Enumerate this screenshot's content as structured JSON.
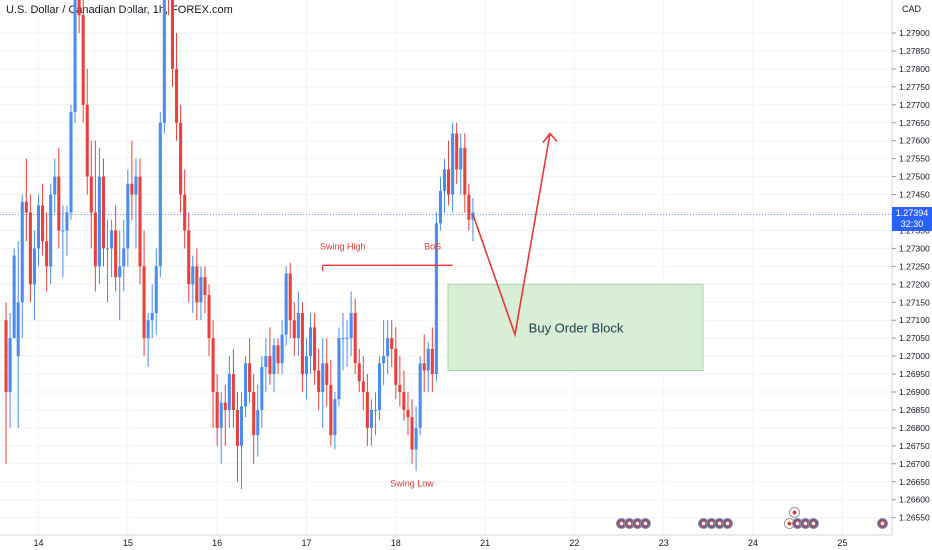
{
  "chart_title": "U.S. Dollar / Canadian Dollar, 1h, FOREX.com",
  "currency_label": "CAD",
  "current_price": {
    "value": "1.27394",
    "countdown": "32:30"
  },
  "colors": {
    "up": "#4a8cf0",
    "down": "#e8403a",
    "annotation": "#e53935",
    "block_fill": "#d8efd5",
    "block_border": "#a5d6a7",
    "tag": "#2962ff"
  },
  "chart_data": {
    "type": "candlestick",
    "title": "U.S. Dollar / Canadian Dollar, 1h, FOREX.com",
    "ylabel": "CAD",
    "ylim": [
      1.2623,
      1.28
    ],
    "y_ticks": [
      "1.27900",
      "1.27850",
      "1.27800",
      "1.27750",
      "1.27700",
      "1.27650",
      "1.27600",
      "1.27550",
      "1.27500",
      "1.27450",
      "1.27400",
      "1.27350",
      "1.27300",
      "1.27250",
      "1.27200",
      "1.27150",
      "1.27100",
      "1.27050",
      "1.27000",
      "1.26950",
      "1.26900",
      "1.26850",
      "1.26800",
      "1.26750",
      "1.26700",
      "1.26650",
      "1.26600",
      "1.26550"
    ],
    "x_ticks": [
      {
        "label": "14",
        "bar": 8
      },
      {
        "label": "15",
        "bar": 30
      },
      {
        "label": "16",
        "bar": 52
      },
      {
        "label": "17",
        "bar": 74
      },
      {
        "label": "18",
        "bar": 96
      },
      {
        "label": "21",
        "bar": 118
      },
      {
        "label": "22",
        "bar": 140
      },
      {
        "label": "23",
        "bar": 162
      },
      {
        "label": "24",
        "bar": 184
      },
      {
        "label": "25",
        "bar": 206
      }
    ],
    "candles": [
      [
        1.271,
        1.2715,
        1.267,
        1.269
      ],
      [
        1.269,
        1.2712,
        1.268,
        1.2705
      ],
      [
        1.2705,
        1.273,
        1.2705,
        1.2728
      ],
      [
        1.27,
        1.2732,
        1.268,
        1.2715
      ],
      [
        1.2715,
        1.2745,
        1.2705,
        1.2743
      ],
      [
        1.2743,
        1.2755,
        1.2732,
        1.274
      ],
      [
        1.274,
        1.2745,
        1.2715,
        1.272
      ],
      [
        1.272,
        1.2735,
        1.271,
        1.273
      ],
      [
        1.273,
        1.2745,
        1.2725,
        1.2742
      ],
      [
        1.2742,
        1.2748,
        1.2728,
        1.2732
      ],
      [
        1.2732,
        1.274,
        1.2718,
        1.2725
      ],
      [
        1.2725,
        1.2748,
        1.272,
        1.2745
      ],
      [
        1.2745,
        1.2755,
        1.274,
        1.275
      ],
      [
        1.275,
        1.2758,
        1.273,
        1.2735
      ],
      [
        1.2735,
        1.2742,
        1.2722,
        1.2735
      ],
      [
        1.2735,
        1.2742,
        1.2728,
        1.274
      ],
      [
        1.274,
        1.277,
        1.2738,
        1.2768
      ],
      [
        1.2768,
        1.2825,
        1.2765,
        1.282
      ],
      [
        1.282,
        1.2835,
        1.279,
        1.2795
      ],
      [
        1.2795,
        1.28,
        1.2765,
        1.277
      ],
      [
        1.277,
        1.278,
        1.2745,
        1.275
      ],
      [
        1.275,
        1.276,
        1.273,
        1.274
      ],
      [
        1.274,
        1.276,
        1.2718,
        1.2725
      ],
      [
        1.2725,
        1.2758,
        1.272,
        1.275
      ],
      [
        1.275,
        1.2755,
        1.2725,
        1.273
      ],
      [
        1.273,
        1.2738,
        1.2715,
        1.273
      ],
      [
        1.273,
        1.2738,
        1.2722,
        1.2735
      ],
      [
        1.2735,
        1.2742,
        1.2718,
        1.2722
      ],
      [
        1.2722,
        1.2735,
        1.271,
        1.2725
      ],
      [
        1.2725,
        1.2738,
        1.2718,
        1.273
      ],
      [
        1.273,
        1.2752,
        1.2725,
        1.2748
      ],
      [
        1.2748,
        1.276,
        1.2738,
        1.2745
      ],
      [
        1.2745,
        1.2755,
        1.273,
        1.275
      ],
      [
        1.275,
        1.2755,
        1.272,
        1.2725
      ],
      [
        1.2725,
        1.2735,
        1.27,
        1.2705
      ],
      [
        1.2705,
        1.2712,
        1.2697,
        1.271
      ],
      [
        1.271,
        1.272,
        1.2705,
        1.2712
      ],
      [
        1.2712,
        1.273,
        1.2706,
        1.2725
      ],
      [
        1.2725,
        1.2768,
        1.2722,
        1.2765
      ],
      [
        1.2765,
        1.282,
        1.2762,
        1.2815
      ],
      [
        1.2815,
        1.282,
        1.2795,
        1.28
      ],
      [
        1.28,
        1.281,
        1.2775,
        1.278
      ],
      [
        1.278,
        1.279,
        1.276,
        1.2765
      ],
      [
        1.2765,
        1.277,
        1.274,
        1.2745
      ],
      [
        1.2745,
        1.2752,
        1.273,
        1.2735
      ],
      [
        1.2735,
        1.274,
        1.2715,
        1.272
      ],
      [
        1.272,
        1.2728,
        1.2712,
        1.2725
      ],
      [
        1.2725,
        1.273,
        1.271,
        1.2715
      ],
      [
        1.2715,
        1.2725,
        1.271,
        1.2722
      ],
      [
        1.2722,
        1.2725,
        1.2712,
        1.2717
      ],
      [
        1.2717,
        1.272,
        1.27,
        1.2705
      ],
      [
        1.2705,
        1.271,
        1.268,
        1.269
      ],
      [
        1.269,
        1.2695,
        1.2675,
        1.268
      ],
      [
        1.268,
        1.269,
        1.267,
        1.2687
      ],
      [
        1.2687,
        1.2692,
        1.2675,
        1.2685
      ],
      [
        1.2685,
        1.27,
        1.268,
        1.2695
      ],
      [
        1.2695,
        1.2702,
        1.268,
        1.2685
      ],
      [
        1.2685,
        1.269,
        1.2665,
        1.2675
      ],
      [
        1.2675,
        1.269,
        1.2663,
        1.2686
      ],
      [
        1.2686,
        1.27,
        1.2683,
        1.2698
      ],
      [
        1.2698,
        1.2705,
        1.2687,
        1.269
      ],
      [
        1.269,
        1.2695,
        1.267,
        1.2678
      ],
      [
        1.2678,
        1.2692,
        1.2672,
        1.2685
      ],
      [
        1.2685,
        1.27,
        1.268,
        1.2697
      ],
      [
        1.2697,
        1.2705,
        1.269,
        1.27
      ],
      [
        1.27,
        1.2708,
        1.2692,
        1.2695
      ],
      [
        1.2695,
        1.2705,
        1.269,
        1.2703
      ],
      [
        1.2703,
        1.2705,
        1.2695,
        1.2698
      ],
      [
        1.2698,
        1.271,
        1.2695,
        1.2706
      ],
      [
        1.2706,
        1.2725,
        1.2703,
        1.2723
      ],
      [
        1.2723,
        1.2726,
        1.2705,
        1.271
      ],
      [
        1.271,
        1.2715,
        1.27,
        1.2705
      ],
      [
        1.2705,
        1.2718,
        1.27,
        1.2712
      ],
      [
        1.2712,
        1.2715,
        1.269,
        1.2695
      ],
      [
        1.2695,
        1.2705,
        1.2688,
        1.27
      ],
      [
        1.27,
        1.2712,
        1.2695,
        1.2708
      ],
      [
        1.2708,
        1.2712,
        1.2692,
        1.2696
      ],
      [
        1.2696,
        1.2702,
        1.2685,
        1.269
      ],
      [
        1.269,
        1.2705,
        1.268,
        1.2698
      ],
      [
        1.2698,
        1.2705,
        1.2686,
        1.2692
      ],
      [
        1.2692,
        1.2699,
        1.2675,
        1.2678
      ],
      [
        1.2678,
        1.269,
        1.2674,
        1.2688
      ],
      [
        1.2688,
        1.2708,
        1.2686,
        1.2705
      ],
      [
        1.2705,
        1.2712,
        1.2696,
        1.2705
      ],
      [
        1.2705,
        1.271,
        1.2697,
        1.2705
      ],
      [
        1.2705,
        1.2718,
        1.27,
        1.2712
      ],
      [
        1.2712,
        1.2716,
        1.2695,
        1.2698
      ],
      [
        1.2698,
        1.2702,
        1.269,
        1.2693
      ],
      [
        1.2693,
        1.27,
        1.2685,
        1.269
      ],
      [
        1.269,
        1.2695,
        1.2675,
        1.268
      ],
      [
        1.268,
        1.2688,
        1.2675,
        1.2685
      ],
      [
        1.2685,
        1.269,
        1.2678,
        1.2685
      ],
      [
        1.2685,
        1.27,
        1.2682,
        1.2698
      ],
      [
        1.2698,
        1.271,
        1.2692,
        1.27
      ],
      [
        1.27,
        1.271,
        1.2695,
        1.2705
      ],
      [
        1.2705,
        1.271,
        1.2697,
        1.2702
      ],
      [
        1.2702,
        1.2708,
        1.2688,
        1.2692
      ],
      [
        1.2692,
        1.27,
        1.2686,
        1.269
      ],
      [
        1.269,
        1.2696,
        1.2682,
        1.2685
      ],
      [
        1.2685,
        1.269,
        1.2678,
        1.2683
      ],
      [
        1.2683,
        1.2688,
        1.267,
        1.2674
      ],
      [
        1.2674,
        1.2686,
        1.2668,
        1.268
      ],
      [
        1.268,
        1.27,
        1.2678,
        1.2698
      ],
      [
        1.2698,
        1.2706,
        1.269,
        1.2696
      ],
      [
        1.2696,
        1.2704,
        1.269,
        1.2702
      ],
      [
        1.2702,
        1.2708,
        1.269,
        1.2695
      ],
      [
        1.2695,
        1.274,
        1.2693,
        1.2737
      ],
      [
        1.2737,
        1.275,
        1.2735,
        1.2746
      ],
      [
        1.2746,
        1.2755,
        1.274,
        1.2752
      ],
      [
        1.2752,
        1.276,
        1.2742,
        1.2745
      ],
      [
        1.2745,
        1.2765,
        1.274,
        1.2762
      ],
      [
        1.2762,
        1.2765,
        1.2748,
        1.2752
      ],
      [
        1.2752,
        1.2762,
        1.2745,
        1.2758
      ],
      [
        1.2758,
        1.2762,
        1.274,
        1.2745
      ],
      [
        1.2745,
        1.2748,
        1.2735,
        1.2738
      ],
      [
        1.2738,
        1.2744,
        1.2732,
        1.274
      ]
    ],
    "annotations": {
      "swing_high": "Swing High",
      "bos": "BoS",
      "swing_low": "Swing Low",
      "order_block": "Buy Order Block",
      "order_block_range": [
        1.2696,
        1.272
      ]
    }
  }
}
